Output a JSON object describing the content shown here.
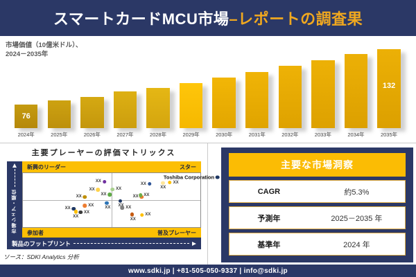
{
  "header": {
    "title_main": "スマートカードMCU市場",
    "title_accent": "–レポートの調査果"
  },
  "chart_caption": {
    "line1": "市場価値（10億米ドル）、",
    "line2": "2024－2035年"
  },
  "chart_data": [
    {
      "type": "bar",
      "title": "市場価値（10億米ドル）、2024－2035年",
      "categories": [
        "2024年",
        "2025年",
        "2026年",
        "2027年",
        "2028年",
        "2029年",
        "2030年",
        "2031年",
        "2032年",
        "2033年",
        "2034年",
        "2035年"
      ],
      "values": [
        76,
        80,
        84,
        89,
        93,
        98,
        103,
        109,
        115,
        121,
        127,
        132
      ],
      "data_labels": {
        "2024年": "76",
        "2035年": "132"
      },
      "value_axis_visible": false,
      "grid": false,
      "bar_colors": [
        [
          "#c59b10",
          "#b5880a"
        ],
        [
          "#cda211",
          "#bd900c"
        ],
        [
          "#d5a912",
          "#c4970d"
        ],
        [
          "#ddb013",
          "#cc9e0e"
        ],
        [
          "#e5b714",
          "#d4a50f"
        ],
        [
          "#ffc60a",
          "#f5b800"
        ],
        [
          "#f2b606",
          "#e2a600"
        ],
        [
          "#f0b406",
          "#e0a400"
        ],
        [
          "#eeb206",
          "#dea200"
        ],
        [
          "#edb106",
          "#dda100"
        ],
        [
          "#ecb006",
          "#dca000"
        ],
        [
          "#ecb006",
          "#dca000"
        ]
      ]
    },
    {
      "type": "scatter",
      "title": "主要プレーヤーの評価マトリックス",
      "x_axis": "製品のフットプリント",
      "y_axis": "市場シェア・順位",
      "quadrants": {
        "top_left": "新興のリーダー",
        "top_right": "スター",
        "bottom_left": "参加者",
        "bottom_right": "普及プレーヤー"
      },
      "points": [
        {
          "x": 44.0,
          "y": 16.0,
          "color": "#7030a0",
          "label": "XX",
          "label_pos": "left"
        },
        {
          "x": 40.4,
          "y": 31.0,
          "color": "#ffd34d",
          "label": "XX",
          "label_pos": "left"
        },
        {
          "x": 47.0,
          "y": 40.0,
          "color": "#5faa46",
          "label": "XX",
          "label_pos": "left"
        },
        {
          "x": 33.0,
          "y": 44.0,
          "color": "#bf8f00",
          "label": "XX",
          "label_pos": "left"
        },
        {
          "x": 95.0,
          "y": 7.5,
          "color": "#1f3864",
          "label": "Toshiba Corporation",
          "label_pos": "left",
          "emphasis": true
        },
        {
          "x": 84.7,
          "y": 17.5,
          "color": "#ffc000",
          "label": "XX",
          "label_pos": "right"
        },
        {
          "x": 79.0,
          "y": 22.5,
          "color": "#ffe699",
          "label": "XX",
          "label_pos": "below"
        },
        {
          "x": 69.4,
          "y": 20.0,
          "color": "#2f5597",
          "label": "XX",
          "label_pos": "left"
        },
        {
          "x": 52.5,
          "y": 30.0,
          "color": "#a9d18e",
          "label": "XX",
          "label_pos": "right"
        },
        {
          "x": 65.0,
          "y": 44.0,
          "color": "#ed7d31",
          "label": "XX",
          "label_pos": "left"
        },
        {
          "x": 68.2,
          "y": 41.0,
          "color": "#70ad47",
          "label": "XX",
          "label_pos": "right"
        },
        {
          "x": 36.9,
          "y": 60.0,
          "color": "#ed7d31",
          "label": "XX",
          "label_pos": "right"
        },
        {
          "x": 47.8,
          "y": 60.0,
          "color": "#2e75b6",
          "label": "XX",
          "label_pos": "below-left"
        },
        {
          "x": 26.7,
          "y": 66.0,
          "color": "#1f3864",
          "label": "XX",
          "label_pos": "left"
        },
        {
          "x": 34.5,
          "y": 72.5,
          "color": "#3b3b3b",
          "label": "XX",
          "label_pos": "right"
        },
        {
          "x": 29.8,
          "y": 76.0,
          "color": "#ffc000",
          "label": "XX",
          "label_pos": "below"
        },
        {
          "x": 55.3,
          "y": 56.0,
          "color": "#1f3864",
          "label": "XX",
          "label_pos": "below-left"
        },
        {
          "x": 58.0,
          "y": 64.0,
          "color": "#7f7f7f",
          "label": "XX",
          "label_pos": "right"
        },
        {
          "x": 62.0,
          "y": 81.0,
          "color": "#c55a11",
          "label": "XX",
          "label_pos": "below-left"
        },
        {
          "x": 69.0,
          "y": 77.5,
          "color": "#ffc000",
          "label": "XX",
          "label_pos": "right"
        }
      ]
    }
  ],
  "source_note": "ソース：SDKI Analytics 分析",
  "insights": {
    "title": "主要な市場洞察",
    "rows": [
      {
        "label": "CAGR",
        "value": "約5.3%"
      },
      {
        "label": "予測年",
        "value": "2025－2035 年"
      },
      {
        "label": "基準年",
        "value": "2024 年"
      }
    ]
  },
  "footer": {
    "text": "www.sdki.jp | +81-505-050-9337 | info@sdki.jp"
  },
  "colors": {
    "navy": "#2b3866",
    "gold_band": "#fcbf04",
    "title_accent": "#f0a81f",
    "bar_base": "#eab000"
  }
}
